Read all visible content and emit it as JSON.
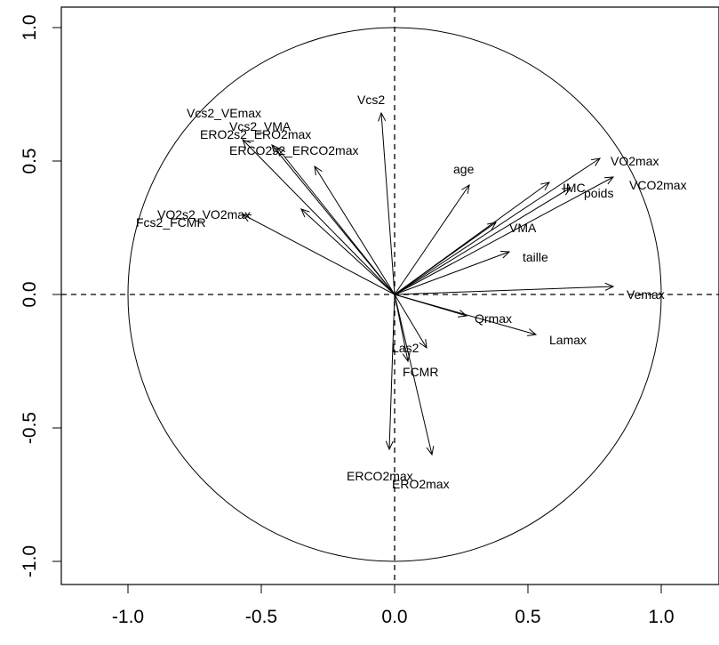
{
  "chart_data": {
    "type": "scatter",
    "subtype": "correlation-circle",
    "title": "",
    "xlabel": "",
    "ylabel": "",
    "xlim": [
      -1.2,
      1.2
    ],
    "ylim": [
      -1.1,
      1.1
    ],
    "x_ticks": [
      {
        "value": -1.0,
        "label": "-1.0"
      },
      {
        "value": -0.5,
        "label": "-0.5"
      },
      {
        "value": 0.0,
        "label": "0.0"
      },
      {
        "value": 0.5,
        "label": "0.5"
      },
      {
        "value": 1.0,
        "label": "1.0"
      }
    ],
    "y_ticks": [
      {
        "value": -1.0,
        "label": "-1.0"
      },
      {
        "value": -0.5,
        "label": "-0.5"
      },
      {
        "value": 0.0,
        "label": "0.0"
      },
      {
        "value": 0.5,
        "label": "0.5"
      },
      {
        "value": 1.0,
        "label": "1.0"
      }
    ],
    "unit_circle": true,
    "reference_lines": "dashed lines at x=0 and y=0",
    "grid": false,
    "colors": {
      "line": "#000000",
      "background": "#ffffff"
    },
    "variables": [
      {
        "name": "Vcs2",
        "x": -0.05,
        "y": 0.68,
        "label_x": -0.14,
        "label_y": 0.73
      },
      {
        "name": "Vcs2_VEmax",
        "x": -0.57,
        "y": 0.58,
        "label_x": -0.78,
        "label_y": 0.68
      },
      {
        "name": "Vcs2_VMA",
        "x": -0.46,
        "y": 0.56,
        "label_x": -0.62,
        "label_y": 0.63
      },
      {
        "name": "ERO2s2_ERO2max",
        "x": -0.44,
        "y": 0.55,
        "label_x": -0.73,
        "label_y": 0.6
      },
      {
        "name": "ERCO2s2_ERCO2max",
        "x": -0.3,
        "y": 0.48,
        "label_x": -0.62,
        "label_y": 0.54
      },
      {
        "name": "VO2s2_VO2max",
        "x": -0.35,
        "y": 0.32,
        "label_x": -0.89,
        "label_y": 0.3
      },
      {
        "name": "Fcs2_FCMR",
        "x": -0.57,
        "y": 0.3,
        "label_x": -0.97,
        "label_y": 0.27
      },
      {
        "name": "age",
        "x": 0.28,
        "y": 0.41,
        "label_x": 0.22,
        "label_y": 0.47
      },
      {
        "name": "VO2max",
        "x": 0.77,
        "y": 0.51,
        "label_x": 0.81,
        "label_y": 0.5
      },
      {
        "name": "IMC",
        "x": 0.58,
        "y": 0.42,
        "label_x": 0.63,
        "label_y": 0.4
      },
      {
        "name": "poids",
        "x": 0.66,
        "y": 0.4,
        "label_x": 0.71,
        "label_y": 0.38
      },
      {
        "name": "VCO2max",
        "x": 0.82,
        "y": 0.44,
        "label_x": 0.88,
        "label_y": 0.41
      },
      {
        "name": "VMA",
        "x": 0.38,
        "y": 0.27,
        "label_x": 0.43,
        "label_y": 0.25
      },
      {
        "name": "taille",
        "x": 0.43,
        "y": 0.16,
        "label_x": 0.48,
        "label_y": 0.14
      },
      {
        "name": "Vemax",
        "x": 0.82,
        "y": 0.03,
        "label_x": 0.87,
        "label_y": 0.0
      },
      {
        "name": "Qrmax",
        "x": 0.27,
        "y": -0.08,
        "label_x": 0.3,
        "label_y": -0.09
      },
      {
        "name": "Lamax",
        "x": 0.53,
        "y": -0.15,
        "label_x": 0.58,
        "label_y": -0.17
      },
      {
        "name": "Las2",
        "x": 0.12,
        "y": -0.2,
        "label_x": -0.01,
        "label_y": -0.2
      },
      {
        "name": "FCMR",
        "x": 0.05,
        "y": -0.25,
        "label_x": 0.03,
        "label_y": -0.29
      },
      {
        "name": "ERCO2max",
        "x": -0.02,
        "y": -0.58,
        "label_x": -0.18,
        "label_y": -0.68
      },
      {
        "name": "ERO2max",
        "x": 0.14,
        "y": -0.6,
        "label_x": -0.01,
        "label_y": -0.71
      }
    ]
  }
}
